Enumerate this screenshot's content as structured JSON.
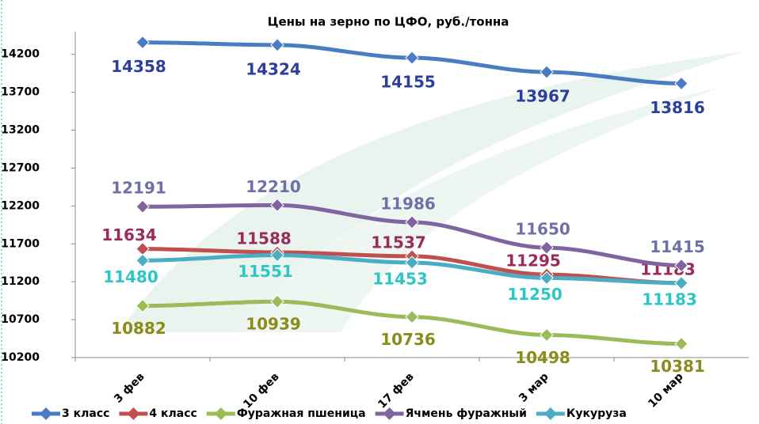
{
  "chart_data": {
    "type": "line",
    "title": "Цены на зерно по ЦФО, руб./тонна",
    "categories": [
      "3 фев",
      "10 фев",
      "17 фев",
      "3 мар",
      "10 мар"
    ],
    "ylim": [
      10200,
      14500
    ],
    "yticks": [
      10200,
      10700,
      11200,
      11700,
      12200,
      12700,
      13200,
      13700,
      14200
    ],
    "series": [
      {
        "name": "3 класс",
        "color": "#4a7cc4",
        "label_color": "#2e3e9c",
        "values": [
          14358,
          14324,
          14155,
          13967,
          13816
        ]
      },
      {
        "name": "4 класс",
        "color": "#c0504d",
        "label_color": "#9b2b5a",
        "values": [
          11634,
          11588,
          11537,
          11295,
          11183
        ]
      },
      {
        "name": "Фуражная пшеница",
        "color": "#9bbb59",
        "label_color": "#8b8b1a",
        "values": [
          10882,
          10939,
          10736,
          10498,
          10381
        ]
      },
      {
        "name": "Ячмень фуражный",
        "color": "#8064a2",
        "label_color": "#7070a8",
        "values": [
          12191,
          12210,
          11986,
          11650,
          11415
        ]
      },
      {
        "name": "Кукуруза",
        "color": "#4bacc6",
        "label_color": "#2cc6c6",
        "values": [
          11480,
          11551,
          11453,
          11250,
          11183
        ]
      }
    ]
  }
}
